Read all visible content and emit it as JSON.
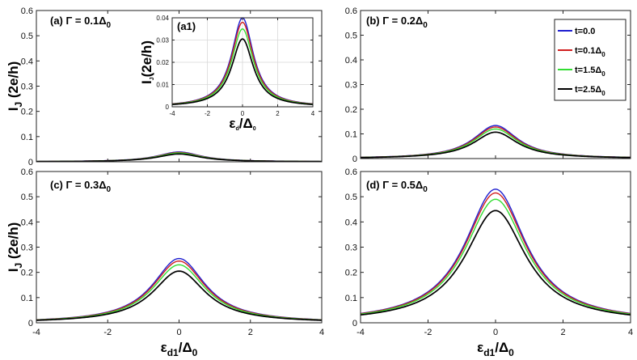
{
  "chart_data": [
    {
      "id": "a",
      "type": "line",
      "panel_label": "(a) Γ = 0.1Δ",
      "panel_label_sub": "0",
      "xlim": [
        -4,
        4
      ],
      "ylim": [
        0,
        0.6
      ],
      "xticks": [],
      "yticks": [
        "0",
        "0.1",
        "0.2",
        "0.3",
        "0.4",
        "0.5",
        "0.6"
      ],
      "peaks": [
        0.039,
        0.037,
        0.035,
        0.031
      ],
      "width": 0.75,
      "ylabel": "I",
      "ylabel_sub": "J",
      "ylabel_tail": " (2e/h)",
      "xlabel": ""
    },
    {
      "id": "b",
      "type": "line",
      "panel_label": "(b) Γ = 0.2Δ",
      "panel_label_sub": "0",
      "xlim": [
        -4,
        4
      ],
      "ylim": [
        0,
        0.6
      ],
      "xticks": [],
      "yticks": [
        "0",
        "0.1",
        "0.2",
        "0.3",
        "0.4",
        "0.5",
        "0.6"
      ],
      "peaks": [
        0.134,
        0.128,
        0.12,
        0.107
      ],
      "width": 0.8,
      "ylabel": "",
      "xlabel": ""
    },
    {
      "id": "c",
      "type": "line",
      "panel_label": "(c) Γ = 0.3Δ",
      "panel_label_sub": "0",
      "xlim": [
        -4,
        4
      ],
      "ylim": [
        0,
        0.6
      ],
      "xticks": [
        "-4",
        "-2",
        "0",
        "2",
        "4"
      ],
      "yticks": [
        "0",
        "0.1",
        "0.2",
        "0.3",
        "0.4",
        "0.5",
        "0.6"
      ],
      "peaks": [
        0.255,
        0.245,
        0.23,
        0.205
      ],
      "width": 0.9,
      "ylabel": "I",
      "ylabel_sub": "J",
      "ylabel_tail": " (2e/h)",
      "xlabel": "ε",
      "xlabel_sub": "d1",
      "xlabel_tail": "/Δ",
      "xlabel_tail_sub": "0"
    },
    {
      "id": "d",
      "type": "line",
      "panel_label": "(d) Γ = 0.5Δ",
      "panel_label_sub": "0",
      "xlim": [
        -4,
        4
      ],
      "ylim": [
        0,
        0.6
      ],
      "xticks": [
        "-4",
        "-2",
        "0",
        "2",
        "4"
      ],
      "yticks": [
        "0",
        "0.1",
        "0.2",
        "0.3",
        "0.4",
        "0.5",
        "0.6"
      ],
      "peaks": [
        0.53,
        0.515,
        0.49,
        0.445
      ],
      "width": 1.1,
      "ylabel": "",
      "xlabel": "ε",
      "xlabel_sub": "d1",
      "xlabel_tail": "/Δ",
      "xlabel_tail_sub": "0"
    },
    {
      "id": "a1",
      "type": "line",
      "panel_label": "(a1)",
      "xlim": [
        -4,
        4
      ],
      "ylim": [
        0,
        0.04
      ],
      "xticks": [
        "-4",
        "-2",
        "0",
        "2",
        "4"
      ],
      "yticks": [
        "0",
        "0.01",
        "0.02",
        "0.03",
        "0.04"
      ],
      "peaks": [
        0.04,
        0.038,
        0.035,
        0.0305
      ],
      "width": 0.75,
      "ylabel": "I",
      "ylabel_sub": "J",
      "ylabel_tail": "(2e/h)",
      "xlabel": "ε",
      "xlabel_sub": "d",
      "xlabel_tail": "/Δ",
      "xlabel_tail_sub": "0",
      "grid": true
    }
  ],
  "legend": {
    "placement": "top-right of panel (b)",
    "entries": [
      {
        "label": "t=0.0",
        "sub": "",
        "color": "#1f1fd0"
      },
      {
        "label": "t=0.1Δ",
        "sub": "0",
        "color": "#d01f1f"
      },
      {
        "label": "t=1.5Δ",
        "sub": "0",
        "color": "#33dd33"
      },
      {
        "label": "t=2.5Δ",
        "sub": "0",
        "color": "#000000"
      }
    ]
  },
  "series_colors": [
    "#1f1fd0",
    "#d01f1f",
    "#33dd33",
    "#000000"
  ]
}
